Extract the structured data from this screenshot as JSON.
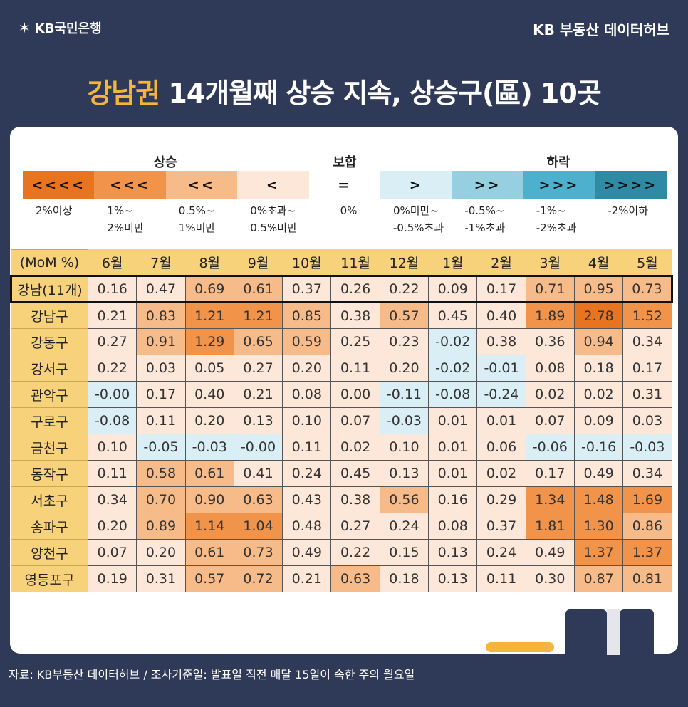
{
  "header": {
    "brand_left": "KB국민은행",
    "brand_right": "KB 부동산 데이터허브",
    "title_highlight": "강남권",
    "title_rest": " 14개월째 상승 지속, 상승구(區) 10곳"
  },
  "legend": {
    "group_up": "상승",
    "group_flat": "보합",
    "group_down": "하락",
    "cells": [
      {
        "symbol": "<<<<",
        "desc1": "2%이상",
        "desc2": "",
        "color": "#e8741f"
      },
      {
        "symbol": "<<<",
        "desc1": "1%~",
        "desc2": "2%미만",
        "color": "#f2934a"
      },
      {
        "symbol": "<<",
        "desc1": "0.5%~",
        "desc2": "1%미만",
        "color": "#f7bb8a"
      },
      {
        "symbol": "<",
        "desc1": "0%초과~",
        "desc2": "0.5%미만",
        "color": "#fde7d8"
      },
      {
        "symbol": "=",
        "desc1": "0%",
        "desc2": "",
        "color": "#ffffff"
      },
      {
        "symbol": ">",
        "desc1": "0%미만~",
        "desc2": "-0.5%초과",
        "color": "#daeef5"
      },
      {
        "symbol": ">>",
        "desc1": "-0.5%~",
        "desc2": "-1%초과",
        "color": "#96cfe0"
      },
      {
        "symbol": ">>>",
        "desc1": "-1%~",
        "desc2": "-2%초과",
        "color": "#4db0cc"
      },
      {
        "symbol": ">>>>",
        "desc1": "-2%이하",
        "desc2": "",
        "color": "#2f8aa3"
      }
    ]
  },
  "chart_data": {
    "type": "heatmap",
    "corner_label": "(MoM %)",
    "columns": [
      "6월",
      "7월",
      "8월",
      "9월",
      "10월",
      "11월",
      "12월",
      "1월",
      "2월",
      "3월",
      "4월",
      "5월"
    ],
    "rows": [
      {
        "name": "강남(11개)",
        "values": [
          "0.16",
          "0.47",
          "0.69",
          "0.61",
          "0.37",
          "0.26",
          "0.22",
          "0.09",
          "0.17",
          "0.71",
          "0.95",
          "0.73"
        ]
      },
      {
        "name": "강남구",
        "values": [
          "0.21",
          "0.83",
          "1.21",
          "1.21",
          "0.85",
          "0.38",
          "0.57",
          "0.45",
          "0.40",
          "1.89",
          "2.78",
          "1.52"
        ]
      },
      {
        "name": "강동구",
        "values": [
          "0.27",
          "0.91",
          "1.29",
          "0.65",
          "0.59",
          "0.25",
          "0.23",
          "-0.02",
          "0.38",
          "0.36",
          "0.94",
          "0.34"
        ]
      },
      {
        "name": "강서구",
        "values": [
          "0.22",
          "0.03",
          "0.05",
          "0.27",
          "0.20",
          "0.11",
          "0.20",
          "-0.02",
          "-0.01",
          "0.08",
          "0.18",
          "0.17"
        ]
      },
      {
        "name": "관악구",
        "values": [
          "-0.00",
          "0.17",
          "0.40",
          "0.21",
          "0.08",
          "0.00",
          "-0.11",
          "-0.08",
          "-0.24",
          "0.02",
          "0.02",
          "0.31"
        ]
      },
      {
        "name": "구로구",
        "values": [
          "-0.08",
          "0.11",
          "0.20",
          "0.13",
          "0.10",
          "0.07",
          "-0.03",
          "0.01",
          "0.01",
          "0.07",
          "0.09",
          "0.03"
        ]
      },
      {
        "name": "금천구",
        "values": [
          "0.10",
          "-0.05",
          "-0.03",
          "-0.00",
          "0.11",
          "0.02",
          "0.10",
          "0.01",
          "0.06",
          "-0.06",
          "-0.16",
          "-0.03"
        ]
      },
      {
        "name": "동작구",
        "values": [
          "0.11",
          "0.58",
          "0.61",
          "0.41",
          "0.24",
          "0.45",
          "0.13",
          "0.01",
          "0.02",
          "0.17",
          "0.49",
          "0.34"
        ]
      },
      {
        "name": "서초구",
        "values": [
          "0.34",
          "0.70",
          "0.90",
          "0.63",
          "0.43",
          "0.38",
          "0.56",
          "0.16",
          "0.29",
          "1.34",
          "1.48",
          "1.69"
        ]
      },
      {
        "name": "송파구",
        "values": [
          "0.20",
          "0.89",
          "1.14",
          "1.04",
          "0.48",
          "0.27",
          "0.24",
          "0.08",
          "0.37",
          "1.81",
          "1.30",
          "0.86"
        ]
      },
      {
        "name": "양천구",
        "values": [
          "0.07",
          "0.20",
          "0.61",
          "0.73",
          "0.49",
          "0.22",
          "0.15",
          "0.13",
          "0.24",
          "0.49",
          "1.37",
          "1.37"
        ]
      },
      {
        "name": "영등포구",
        "values": [
          "0.19",
          "0.31",
          "0.57",
          "0.72",
          "0.21",
          "0.63",
          "0.18",
          "0.13",
          "0.11",
          "0.30",
          "0.87",
          "0.81"
        ]
      }
    ]
  },
  "footer": {
    "source": "자료: KB부동산 데이터허브 / 조사기준일: 발표일 직전 매달 15일이 속한 주의 월요일"
  }
}
